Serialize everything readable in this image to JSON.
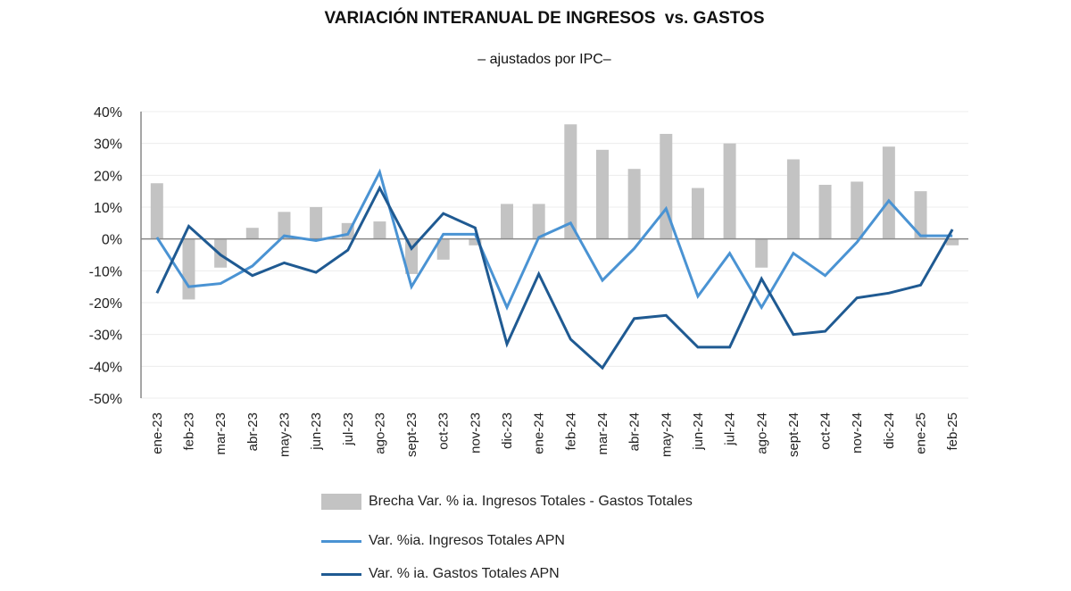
{
  "chart_data": {
    "type": "bar+line",
    "title": "VARIACIÓN INTERANUAL DE INGRESOS  vs. GASTOS",
    "subtitle": "– ajustados por IPC–",
    "categories": [
      "ene-23",
      "feb-23",
      "mar-23",
      "abr-23",
      "may-23",
      "jun-23",
      "jul-23",
      "ago-23",
      "sept-23",
      "oct-23",
      "nov-23",
      "dic-23",
      "ene-24",
      "feb-24",
      "mar-24",
      "abr-24",
      "may-24",
      "jun-24",
      "jul-24",
      "ago-24",
      "sept-24",
      "oct-24",
      "nov-24",
      "dic-24",
      "ene-25",
      "feb-25"
    ],
    "ylim": [
      -50,
      40
    ],
    "yticks": [
      "40%",
      "30%",
      "20%",
      "10%",
      "0%",
      "-10%",
      "-20%",
      "-30%",
      "-40%",
      "-50%"
    ],
    "ytick_values": [
      40,
      30,
      20,
      10,
      0,
      -10,
      -20,
      -30,
      -40,
      -50
    ],
    "grid": true,
    "legend_position": "bottom",
    "series": [
      {
        "name": "Brecha Var. % ia. Ingresos Totales - Gastos Totales",
        "type": "bar",
        "color": "#c3c3c3",
        "values": [
          17.5,
          -19,
          -9,
          3.5,
          8.5,
          10,
          5,
          5.5,
          -11,
          -6.5,
          -2,
          11,
          11,
          36,
          28,
          22,
          33,
          16,
          30,
          -9,
          25,
          17,
          18,
          29,
          15,
          -2
        ]
      },
      {
        "name": "Var. %ia. Ingresos Totales APN",
        "type": "line",
        "color": "#4a93d3",
        "values": [
          0.5,
          -15,
          -14,
          -8.5,
          1,
          -0.5,
          1.5,
          21,
          -15,
          1.5,
          1.5,
          -21.5,
          0.5,
          5,
          -13,
          -3,
          9.5,
          -18,
          -4.5,
          -21.5,
          -4.5,
          -11.5,
          -1,
          12,
          1,
          1
        ]
      },
      {
        "name": "Var. % ia. Gastos Totales APN",
        "type": "line",
        "color": "#1f5a92",
        "values": [
          -17,
          4,
          -5,
          -11.5,
          -7.5,
          -10.5,
          -3.5,
          16,
          -3,
          8,
          3.5,
          -33,
          -11,
          -31.5,
          -40.5,
          -25,
          -24,
          -34,
          -34,
          -12.5,
          -30,
          -29,
          -18.5,
          -17,
          -14.5,
          3
        ]
      }
    ]
  }
}
